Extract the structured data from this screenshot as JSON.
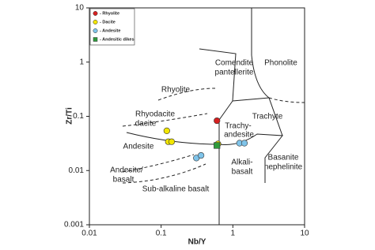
{
  "chart_data": {
    "type": "scatter",
    "xlabel": "Nb/Y",
    "ylabel": "Zr/Ti",
    "log_x": true,
    "log_y": true,
    "xlim": [
      0.01,
      10
    ],
    "ylim": [
      0.001,
      10
    ],
    "xticks": [
      0.01,
      0.1,
      1,
      10
    ],
    "yticks": [
      0.001,
      0.01,
      0.1,
      1,
      10
    ],
    "legend": "upper left",
    "series": [
      {
        "name": "- Rhyolite",
        "color": "#d62020",
        "marker": "circle",
        "x": [
          0.6
        ],
        "values": [
          0.083
        ]
      },
      {
        "name": "- Dacite",
        "color": "#f2e600",
        "marker": "circle",
        "x": [
          0.12,
          0.126,
          0.14,
          0.62
        ],
        "values": [
          0.054,
          0.034,
          0.034,
          0.031
        ]
      },
      {
        "name": "- Andesite",
        "color": "#7fc4ea",
        "marker": "circle",
        "x": [
          0.31,
          0.36,
          1.24,
          1.45
        ],
        "values": [
          0.017,
          0.019,
          0.032,
          0.032
        ]
      },
      {
        "name": "- Andesitic dikes",
        "color": "#2e9a3c",
        "marker": "square",
        "x": [
          0.6
        ],
        "values": [
          0.029
        ]
      }
    ],
    "annotations": [
      "Comendite",
      "pantellerite",
      "Phonolite",
      "Rhyolite",
      "Rhyodacite",
      "dacite",
      "Trachyte",
      "Trachy-",
      "andesite",
      "Andesite",
      "Andesite/",
      "basalt",
      "Alkali-",
      "basalt",
      "Basanite",
      "nephelinite",
      "Sub-alkaline basalt"
    ]
  }
}
